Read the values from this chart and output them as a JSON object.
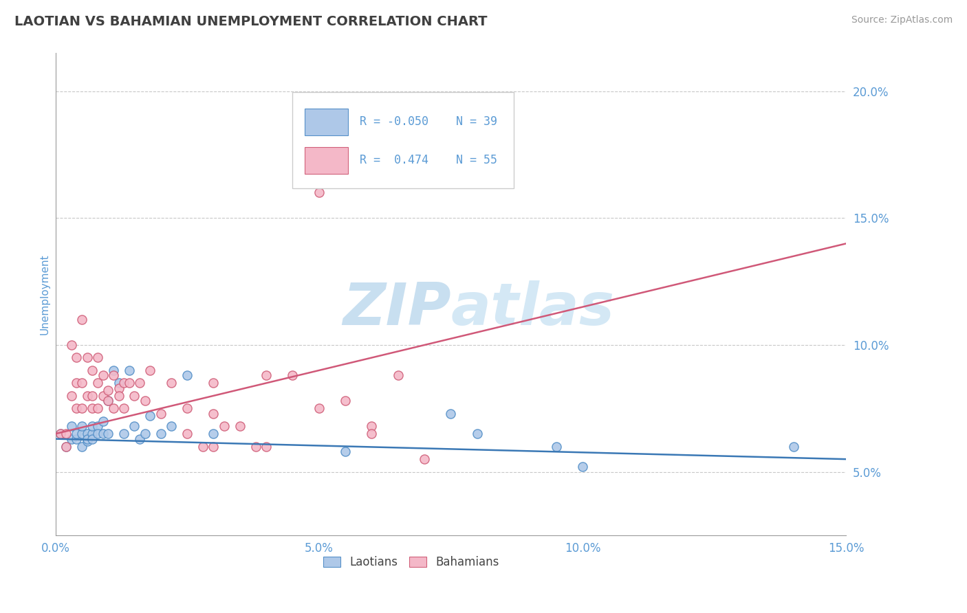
{
  "title": "LAOTIAN VS BAHAMIAN UNEMPLOYMENT CORRELATION CHART",
  "source_text": "Source: ZipAtlas.com",
  "ylabel": "Unemployment",
  "xlim": [
    0.0,
    0.15
  ],
  "ylim": [
    0.025,
    0.215
  ],
  "xticks": [
    0.0,
    0.05,
    0.1,
    0.15
  ],
  "yticks": [
    0.05,
    0.1,
    0.15,
    0.2
  ],
  "xtick_labels": [
    "0.0%",
    "5.0%",
    "10.0%",
    "15.0%"
  ],
  "ytick_labels": [
    "5.0%",
    "10.0%",
    "15.0%",
    "20.0%"
  ],
  "blue_fill_color": "#aec8e8",
  "pink_fill_color": "#f4b8c8",
  "blue_edge_color": "#5590c8",
  "pink_edge_color": "#d0607a",
  "blue_line_color": "#3a78b5",
  "pink_line_color": "#d05878",
  "axis_label_color": "#5b9bd5",
  "watermark_color": "#c8dff0",
  "legend_R_blue": "-0.050",
  "legend_N_blue": "39",
  "legend_R_pink": "0.474",
  "legend_N_pink": "55",
  "blue_scatter_x": [
    0.001,
    0.002,
    0.003,
    0.003,
    0.004,
    0.004,
    0.005,
    0.005,
    0.005,
    0.006,
    0.006,
    0.006,
    0.007,
    0.007,
    0.007,
    0.008,
    0.008,
    0.009,
    0.009,
    0.01,
    0.01,
    0.011,
    0.012,
    0.013,
    0.014,
    0.015,
    0.016,
    0.017,
    0.018,
    0.02,
    0.022,
    0.025,
    0.03,
    0.055,
    0.075,
    0.08,
    0.095,
    0.1,
    0.14
  ],
  "blue_scatter_y": [
    0.065,
    0.06,
    0.063,
    0.068,
    0.063,
    0.065,
    0.06,
    0.065,
    0.068,
    0.062,
    0.065,
    0.063,
    0.065,
    0.068,
    0.063,
    0.068,
    0.065,
    0.07,
    0.065,
    0.078,
    0.065,
    0.09,
    0.085,
    0.065,
    0.09,
    0.068,
    0.063,
    0.065,
    0.072,
    0.065,
    0.068,
    0.088,
    0.065,
    0.058,
    0.073,
    0.065,
    0.06,
    0.052,
    0.06
  ],
  "pink_scatter_x": [
    0.001,
    0.002,
    0.002,
    0.003,
    0.003,
    0.004,
    0.004,
    0.004,
    0.005,
    0.005,
    0.005,
    0.006,
    0.006,
    0.007,
    0.007,
    0.007,
    0.008,
    0.008,
    0.008,
    0.009,
    0.009,
    0.01,
    0.01,
    0.011,
    0.011,
    0.012,
    0.012,
    0.013,
    0.013,
    0.014,
    0.015,
    0.016,
    0.017,
    0.018,
    0.02,
    0.022,
    0.025,
    0.03,
    0.03,
    0.04,
    0.045,
    0.05,
    0.055,
    0.06,
    0.065,
    0.05,
    0.025,
    0.03,
    0.035,
    0.04,
    0.028,
    0.032,
    0.038,
    0.06,
    0.07
  ],
  "pink_scatter_y": [
    0.065,
    0.065,
    0.06,
    0.1,
    0.08,
    0.095,
    0.075,
    0.085,
    0.085,
    0.11,
    0.075,
    0.095,
    0.08,
    0.08,
    0.09,
    0.075,
    0.075,
    0.085,
    0.095,
    0.08,
    0.088,
    0.082,
    0.078,
    0.088,
    0.075,
    0.083,
    0.08,
    0.075,
    0.085,
    0.085,
    0.08,
    0.085,
    0.078,
    0.09,
    0.073,
    0.085,
    0.075,
    0.085,
    0.073,
    0.088,
    0.088,
    0.075,
    0.078,
    0.068,
    0.088,
    0.16,
    0.065,
    0.06,
    0.068,
    0.06,
    0.06,
    0.068,
    0.06,
    0.065,
    0.055
  ],
  "blue_line_x": [
    0.0,
    0.15
  ],
  "blue_line_y": [
    0.063,
    0.055
  ],
  "pink_line_x": [
    0.0,
    0.15
  ],
  "pink_line_y": [
    0.065,
    0.14
  ]
}
